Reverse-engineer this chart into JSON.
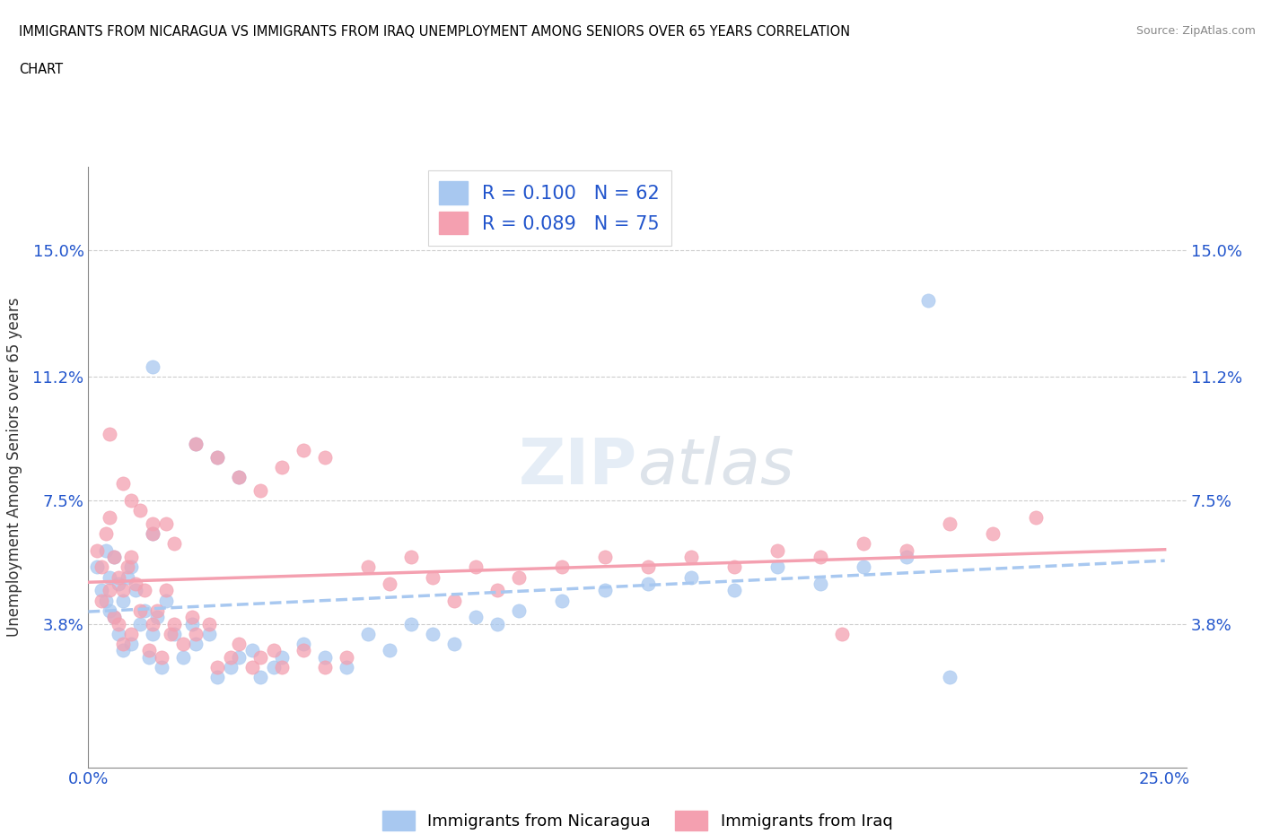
{
  "title_line1": "IMMIGRANTS FROM NICARAGUA VS IMMIGRANTS FROM IRAQ UNEMPLOYMENT AMONG SENIORS OVER 65 YEARS CORRELATION",
  "title_line2": "CHART",
  "source_text": "Source: ZipAtlas.com",
  "ylabel": "Unemployment Among Seniors over 65 years",
  "r_nicaragua": 0.1,
  "n_nicaragua": 62,
  "r_iraq": 0.089,
  "n_iraq": 75,
  "color_nicaragua": "#a8c8f0",
  "color_iraq": "#f4a0b0",
  "color_text_blue": "#2255cc",
  "watermark": "ZIPatlas",
  "ytick_vals": [
    0.0,
    0.038,
    0.075,
    0.112,
    0.15
  ],
  "ytick_labels": [
    "",
    "3.8%",
    "7.5%",
    "11.2%",
    "15.0%"
  ],
  "xtick_vals": [
    0.0,
    0.05,
    0.1,
    0.15,
    0.2,
    0.25
  ],
  "xtick_labels": [
    "0.0%",
    "",
    "",
    "",
    "",
    "25.0%"
  ],
  "xlim": [
    0.0,
    0.255
  ],
  "ylim": [
    -0.005,
    0.175
  ],
  "nicaragua_x": [
    0.002,
    0.003,
    0.004,
    0.004,
    0.005,
    0.005,
    0.006,
    0.006,
    0.007,
    0.007,
    0.008,
    0.008,
    0.009,
    0.01,
    0.01,
    0.011,
    0.012,
    0.013,
    0.014,
    0.015,
    0.015,
    0.016,
    0.017,
    0.018,
    0.02,
    0.022,
    0.024,
    0.025,
    0.028,
    0.03,
    0.033,
    0.035,
    0.038,
    0.04,
    0.043,
    0.045,
    0.05,
    0.055,
    0.06,
    0.065,
    0.07,
    0.075,
    0.08,
    0.085,
    0.09,
    0.095,
    0.1,
    0.11,
    0.12,
    0.13,
    0.14,
    0.15,
    0.16,
    0.17,
    0.18,
    0.19,
    0.2,
    0.025,
    0.03,
    0.035,
    0.195,
    0.015
  ],
  "nicaragua_y": [
    0.055,
    0.048,
    0.06,
    0.045,
    0.052,
    0.042,
    0.058,
    0.04,
    0.05,
    0.035,
    0.045,
    0.03,
    0.052,
    0.055,
    0.032,
    0.048,
    0.038,
    0.042,
    0.028,
    0.035,
    0.065,
    0.04,
    0.025,
    0.045,
    0.035,
    0.028,
    0.038,
    0.032,
    0.035,
    0.022,
    0.025,
    0.028,
    0.03,
    0.022,
    0.025,
    0.028,
    0.032,
    0.028,
    0.025,
    0.035,
    0.03,
    0.038,
    0.035,
    0.032,
    0.04,
    0.038,
    0.042,
    0.045,
    0.048,
    0.05,
    0.052,
    0.048,
    0.055,
    0.05,
    0.055,
    0.058,
    0.022,
    0.092,
    0.088,
    0.082,
    0.135,
    0.115
  ],
  "iraq_x": [
    0.002,
    0.003,
    0.003,
    0.004,
    0.005,
    0.005,
    0.006,
    0.006,
    0.007,
    0.007,
    0.008,
    0.008,
    0.009,
    0.01,
    0.01,
    0.011,
    0.012,
    0.013,
    0.014,
    0.015,
    0.015,
    0.016,
    0.017,
    0.018,
    0.019,
    0.02,
    0.022,
    0.024,
    0.025,
    0.028,
    0.03,
    0.033,
    0.035,
    0.038,
    0.04,
    0.043,
    0.045,
    0.05,
    0.055,
    0.06,
    0.065,
    0.07,
    0.075,
    0.08,
    0.085,
    0.09,
    0.095,
    0.1,
    0.11,
    0.12,
    0.13,
    0.14,
    0.15,
    0.16,
    0.17,
    0.18,
    0.19,
    0.2,
    0.21,
    0.22,
    0.025,
    0.03,
    0.035,
    0.04,
    0.045,
    0.05,
    0.055,
    0.008,
    0.01,
    0.012,
    0.015,
    0.018,
    0.02,
    0.175,
    0.005
  ],
  "iraq_y": [
    0.06,
    0.055,
    0.045,
    0.065,
    0.07,
    0.048,
    0.058,
    0.04,
    0.052,
    0.038,
    0.048,
    0.032,
    0.055,
    0.058,
    0.035,
    0.05,
    0.042,
    0.048,
    0.03,
    0.038,
    0.068,
    0.042,
    0.028,
    0.048,
    0.035,
    0.038,
    0.032,
    0.04,
    0.035,
    0.038,
    0.025,
    0.028,
    0.032,
    0.025,
    0.028,
    0.03,
    0.025,
    0.03,
    0.025,
    0.028,
    0.055,
    0.05,
    0.058,
    0.052,
    0.045,
    0.055,
    0.048,
    0.052,
    0.055,
    0.058,
    0.055,
    0.058,
    0.055,
    0.06,
    0.058,
    0.062,
    0.06,
    0.068,
    0.065,
    0.07,
    0.092,
    0.088,
    0.082,
    0.078,
    0.085,
    0.09,
    0.088,
    0.08,
    0.075,
    0.072,
    0.065,
    0.068,
    0.062,
    0.035,
    0.095
  ]
}
